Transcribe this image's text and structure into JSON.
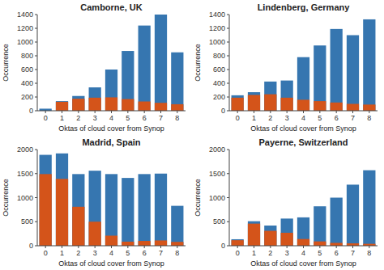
{
  "chart_data": [
    {
      "type": "bar",
      "title": "Camborne, UK",
      "xlabel": "Oktas of cloud cover from Synop",
      "ylabel": "Occurrence",
      "categories": [
        0,
        1,
        2,
        3,
        4,
        5,
        6,
        7,
        8
      ],
      "series": [
        {
          "color": "#3676b0",
          "values": [
            30,
            140,
            215,
            340,
            600,
            870,
            1240,
            1400,
            850
          ]
        },
        {
          "color": "#d4541a",
          "values": [
            0,
            130,
            175,
            190,
            195,
            170,
            135,
            115,
            95
          ]
        }
      ],
      "ylim": [
        0,
        1400
      ],
      "yticks": [
        0,
        200,
        400,
        600,
        800,
        1000,
        1200,
        1400
      ],
      "stacked": false,
      "grid": false
    },
    {
      "type": "bar",
      "title": "Lindenberg, Germany",
      "xlabel": "Oktas of cloud cover from Synop",
      "ylabel": "Occurrence",
      "categories": [
        0,
        1,
        2,
        3,
        4,
        5,
        6,
        7,
        8
      ],
      "series": [
        {
          "color": "#3676b0",
          "values": [
            225,
            270,
            425,
            440,
            780,
            950,
            1190,
            1100,
            1330
          ]
        },
        {
          "color": "#d4541a",
          "values": [
            190,
            230,
            240,
            190,
            160,
            140,
            120,
            100,
            90
          ]
        }
      ],
      "ylim": [
        0,
        1400
      ],
      "yticks": [
        0,
        200,
        400,
        600,
        800,
        1000,
        1200,
        1400
      ],
      "stacked": false,
      "grid": false
    },
    {
      "type": "bar",
      "title": "Madrid, Spain",
      "xlabel": "Oktas of cloud cover from Synop",
      "ylabel": "Occurrence",
      "categories": [
        0,
        1,
        2,
        3,
        4,
        5,
        6,
        7,
        8
      ],
      "series": [
        {
          "color": "#3676b0",
          "values": [
            1890,
            1920,
            1490,
            1560,
            1490,
            1410,
            1490,
            1500,
            830
          ]
        },
        {
          "color": "#d4541a",
          "values": [
            1490,
            1390,
            810,
            500,
            210,
            85,
            100,
            110,
            80
          ]
        }
      ],
      "ylim": [
        0,
        2000
      ],
      "yticks": [
        0,
        500,
        1000,
        1500,
        2000
      ],
      "stacked": false,
      "grid": false
    },
    {
      "type": "bar",
      "title": "Payerne, Switzerland",
      "xlabel": "Oktas of cloud cover from Synop",
      "ylabel": "Occurrence",
      "categories": [
        0,
        1,
        2,
        3,
        4,
        5,
        6,
        7,
        8
      ],
      "series": [
        {
          "color": "#3676b0",
          "values": [
            135,
            510,
            420,
            565,
            590,
            820,
            1000,
            1270,
            1570
          ]
        },
        {
          "color": "#d4541a",
          "values": [
            115,
            460,
            310,
            270,
            140,
            90,
            60,
            50,
            40
          ]
        }
      ],
      "ylim": [
        0,
        2000
      ],
      "yticks": [
        0,
        500,
        1000,
        1500,
        2000
      ],
      "stacked": false,
      "grid": false
    }
  ]
}
